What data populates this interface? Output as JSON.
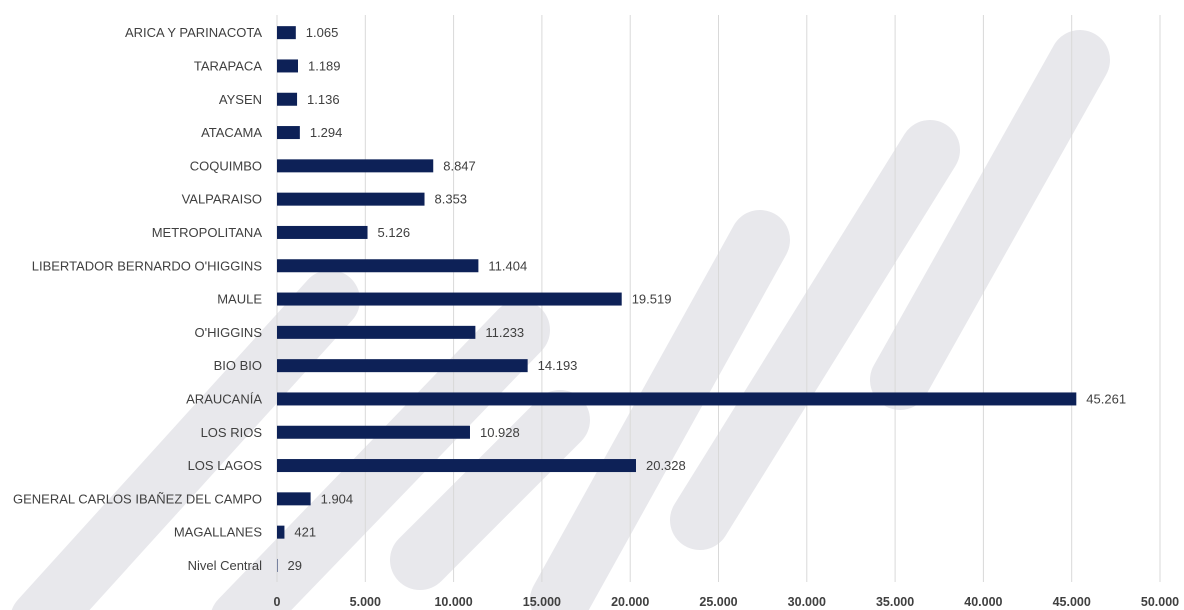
{
  "chart_data": {
    "type": "bar",
    "orientation": "horizontal",
    "title": "",
    "xlabel": "",
    "ylabel": "",
    "categories": [
      "ARICA Y PARINACOTA",
      "TARAPACA",
      "AYSEN",
      "ATACAMA",
      "COQUIMBO",
      "VALPARAISO",
      "METROPOLITANA",
      "LIBERTADOR BERNARDO O'HIGGINS",
      "MAULE",
      "O'HIGGINS",
      "BIO BIO",
      "ARAUCANÍA",
      "LOS RIOS",
      "LOS LAGOS",
      "GENERAL CARLOS IBAÑEZ DEL CAMPO",
      "MAGALLANES",
      "Nivel Central"
    ],
    "values": [
      1065,
      1189,
      1136,
      1294,
      8847,
      8353,
      5126,
      11404,
      19519,
      11233,
      14193,
      45261,
      10928,
      20328,
      1904,
      421,
      29
    ],
    "value_labels": [
      "1.065",
      "1.189",
      "1.136",
      "1.294",
      "8.847",
      "8.353",
      "5.126",
      "11.404",
      "19.519",
      "11.233",
      "14.193",
      "45.261",
      "10.928",
      "20.328",
      "1.904",
      "421",
      "29"
    ],
    "xlim": [
      0,
      50000
    ],
    "ticks": [
      0,
      5000,
      10000,
      15000,
      20000,
      25000,
      30000,
      35000,
      40000,
      45000,
      50000
    ],
    "tick_labels": [
      "0",
      "5.000",
      "10.000",
      "15.000",
      "20.000",
      "25.000",
      "30.000",
      "35.000",
      "40.000",
      "45.000",
      "50.000"
    ],
    "grid": "vertical",
    "legend": "none",
    "bar_color": "#0d2157",
    "watermark_color": "#e8e8ec"
  }
}
